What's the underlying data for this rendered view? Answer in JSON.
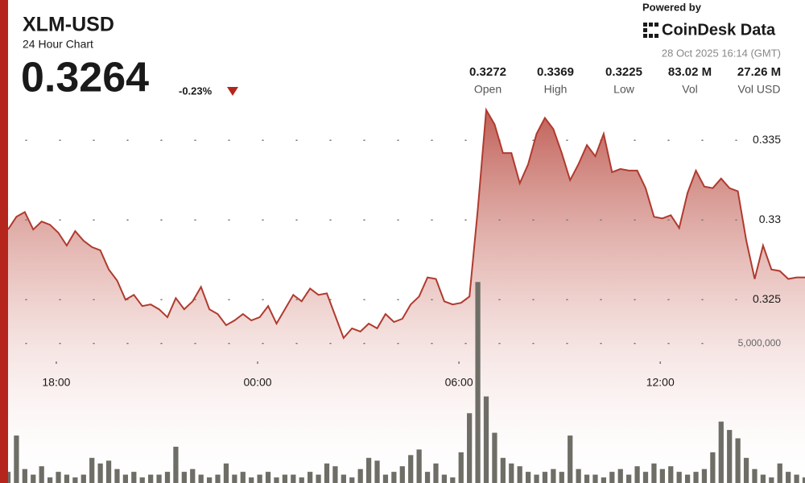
{
  "chart_data": {
    "type": "line",
    "title": "XLM-USD",
    "subtitle": "24 Hour Chart",
    "last": 0.3264,
    "change": "-0.23%",
    "stats": [
      {
        "value": "0.3272",
        "label": "Open"
      },
      {
        "value": "0.3369",
        "label": "High"
      },
      {
        "value": "0.3225",
        "label": "Low"
      },
      {
        "value": "83.02 M",
        "label": "Vol"
      },
      {
        "value": "27.26 M",
        "label": "Vol USD"
      }
    ],
    "xlim": [
      0,
      95
    ],
    "xticks": [
      {
        "value": 5.75,
        "label": "18:00"
      },
      {
        "value": 29.75,
        "label": "00:00"
      },
      {
        "value": 53.75,
        "label": "06:00"
      },
      {
        "value": 77.75,
        "label": "12:00"
      }
    ],
    "ylim": [
      0.3135,
      0.3438
    ],
    "yticks": [
      0.325,
      0.33,
      0.335
    ],
    "y2lim": [
      0,
      17300000
    ],
    "y2ticks": [
      {
        "value": 5000000,
        "label": "5,000,000"
      }
    ],
    "grid": true,
    "series": [
      {
        "type": "line",
        "color": "#b03a2e",
        "values": [
          0.3294,
          0.3302,
          0.3305,
          0.3294,
          0.3299,
          0.3297,
          0.3292,
          0.3284,
          0.3293,
          0.3287,
          0.3283,
          0.3281,
          0.3269,
          0.3262,
          0.325,
          0.3253,
          0.3246,
          0.3247,
          0.3244,
          0.3239,
          0.3251,
          0.3244,
          0.3249,
          0.3258,
          0.3244,
          0.3241,
          0.3234,
          0.3237,
          0.3241,
          0.3237,
          0.3239,
          0.3246,
          0.3235,
          0.3244,
          0.3253,
          0.3249,
          0.3257,
          0.3253,
          0.3254,
          0.324,
          0.3226,
          0.3232,
          0.323,
          0.3235,
          0.3232,
          0.3241,
          0.3236,
          0.3238,
          0.3247,
          0.3252,
          0.3264,
          0.3263,
          0.3249,
          0.3247,
          0.3248,
          0.3252,
          0.3307,
          0.3369,
          0.336,
          0.3342,
          0.3342,
          0.3323,
          0.3335,
          0.3354,
          0.3364,
          0.3357,
          0.3342,
          0.3325,
          0.3335,
          0.3347,
          0.334,
          0.3354,
          0.333,
          0.3332,
          0.3331,
          0.3331,
          0.332,
          0.3302,
          0.3301,
          0.3303,
          0.3295,
          0.3317,
          0.3331,
          0.3321,
          0.332,
          0.3326,
          0.332,
          0.3318,
          0.3287,
          0.3263,
          0.3284,
          0.3269,
          0.3268,
          0.3263,
          0.3264,
          0.3264
        ]
      },
      {
        "type": "bar",
        "axis": "y2",
        "color": "#6e6e66",
        "values": [
          400000,
          1700000,
          500000,
          300000,
          600000,
          200000,
          400000,
          300000,
          200000,
          300000,
          900000,
          700000,
          800000,
          500000,
          300000,
          400000,
          200000,
          300000,
          300000,
          400000,
          1300000,
          400000,
          500000,
          300000,
          200000,
          300000,
          700000,
          300000,
          400000,
          200000,
          300000,
          400000,
          200000,
          300000,
          300000,
          200000,
          400000,
          300000,
          700000,
          600000,
          300000,
          200000,
          500000,
          900000,
          800000,
          300000,
          400000,
          600000,
          1000000,
          1200000,
          400000,
          700000,
          300000,
          200000,
          1100000,
          2500000,
          7200000,
          3100000,
          1800000,
          900000,
          700000,
          600000,
          400000,
          300000,
          400000,
          500000,
          400000,
          1700000,
          500000,
          300000,
          300000,
          200000,
          400000,
          500000,
          300000,
          600000,
          400000,
          700000,
          500000,
          600000,
          400000,
          300000,
          400000,
          500000,
          1100000,
          2200000,
          1900000,
          1600000,
          900000,
          500000,
          300000,
          200000,
          700000,
          400000,
          300000,
          200000
        ]
      }
    ]
  },
  "branding": {
    "powered_by": "Powered by",
    "logo": "CoinDesk Data",
    "timestamp": "28 Oct 2025 16:14 (GMT)"
  }
}
